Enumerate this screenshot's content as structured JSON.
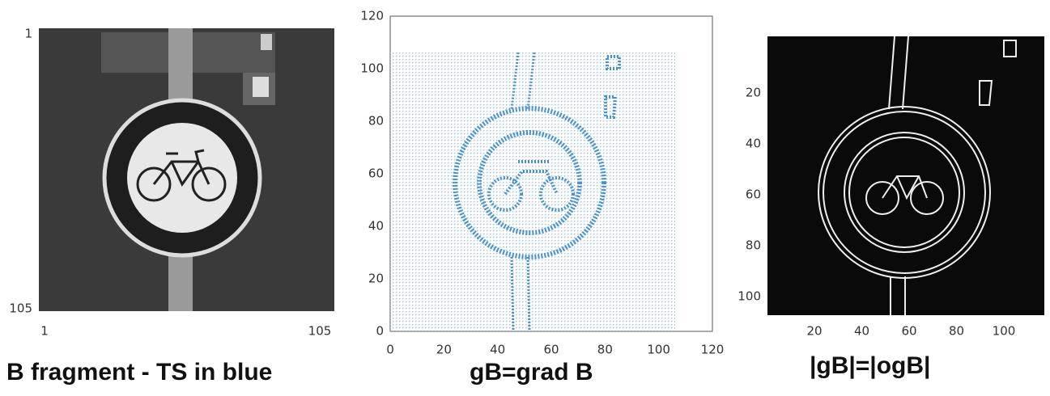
{
  "panels": [
    {
      "x_ticks": [
        1,
        105
      ],
      "y_ticks": [
        1,
        105
      ],
      "caption": "B fragment - TS in blue"
    },
    {
      "x_ticks": [
        0,
        20,
        40,
        60,
        80,
        100,
        120
      ],
      "y_ticks": [
        0,
        20,
        40,
        60,
        80,
        100,
        120
      ],
      "caption": "gB=grad B"
    },
    {
      "x_ticks": [
        20,
        40,
        60,
        80,
        100
      ],
      "y_ticks": [
        20,
        40,
        60,
        80,
        100
      ],
      "caption": "|gB|=|ogB|"
    }
  ]
}
